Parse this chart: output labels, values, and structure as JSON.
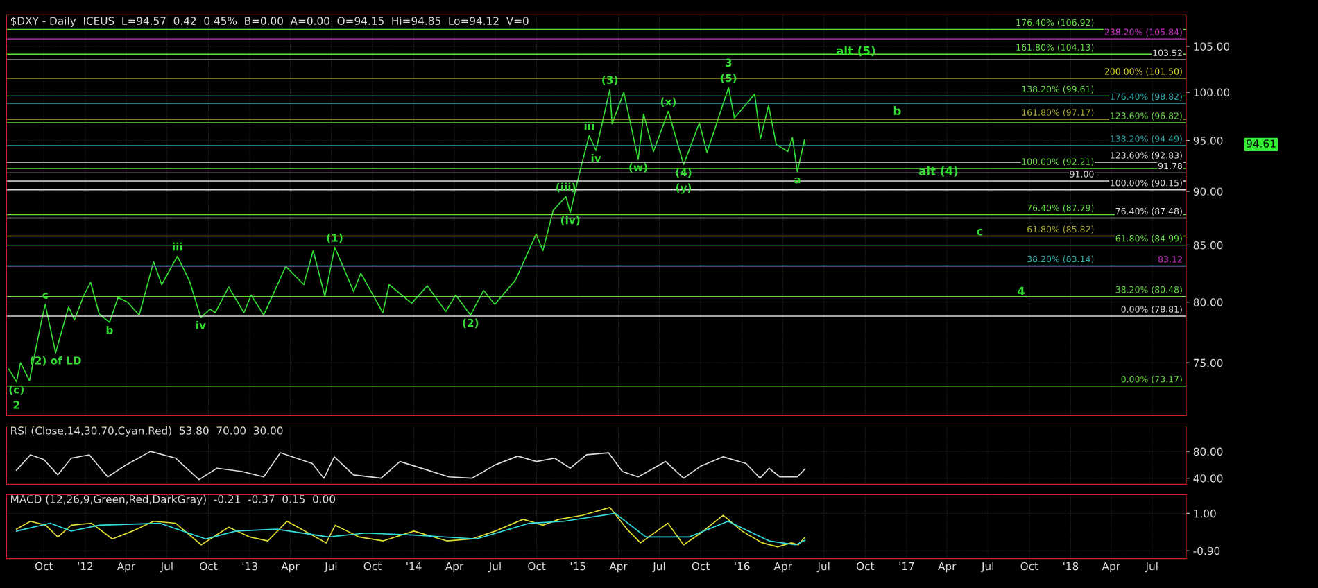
{
  "chart_data": [
    {
      "type": "line",
      "title": "$DXY - Daily  ICEUS  L=94.57  0.42  0.45%  B=0.00  A=0.00  O=94.15  Hi=94.85  Lo=94.12  V=0",
      "log": true,
      "grid": true,
      "tick_labels": "y",
      "xlim": [
        "2011-07-10",
        "2018-09-15"
      ],
      "ylim": [
        70.9,
        108.6
      ],
      "yticks": [
        {
          "value": 75,
          "label": "75.00"
        },
        {
          "value": 80,
          "label": "80.00"
        },
        {
          "value": 85,
          "label": "85.00"
        },
        {
          "value": 90,
          "label": "90.00"
        },
        {
          "value": 95,
          "label": "95.00"
        },
        {
          "value": 100,
          "label": "100.00"
        },
        {
          "value": 105,
          "label": "105.00"
        }
      ],
      "series": [
        {
          "color": "#33dd33",
          "x": [
            "2011-07-15",
            "2011-08-01",
            "2011-08-10",
            "2011-08-30",
            "2011-09-26",
            "2011-10-04",
            "2011-10-27",
            "2011-11-25",
            "2011-12-08",
            "2011-12-29",
            "2012-01-13",
            "2012-02-01",
            "2012-02-24",
            "2012-03-14",
            "2012-04-04",
            "2012-04-30",
            "2012-06-01",
            "2012-06-19",
            "2012-07-24",
            "2012-08-20",
            "2012-09-14",
            "2012-10-05",
            "2012-10-16",
            "2012-11-15",
            "2012-12-19",
            "2013-01-04",
            "2013-02-01",
            "2013-03-22",
            "2013-05-01",
            "2013-05-22",
            "2013-06-17",
            "2013-07-09",
            "2013-08-20",
            "2013-09-05",
            "2013-10-24",
            "2013-11-07",
            "2013-12-27",
            "2014-01-31",
            "2014-03-13",
            "2014-04-04",
            "2014-05-07",
            "2014-06-05",
            "2014-06-30",
            "2014-08-15",
            "2014-09-30",
            "2014-10-15",
            "2014-11-07",
            "2014-12-05",
            "2014-12-15",
            "2015-01-05",
            "2015-01-26",
            "2015-02-10",
            "2015-03-13",
            "2015-03-18",
            "2015-04-13",
            "2015-05-15",
            "2015-05-27",
            "2015-06-18",
            "2015-07-21",
            "2015-08-24",
            "2015-09-28",
            "2015-10-15",
            "2015-12-02",
            "2015-12-15",
            "2016-01-29",
            "2016-02-11",
            "2016-02-29",
            "2016-03-17",
            "2016-04-12",
            "2016-04-22",
            "2016-05-03",
            "2016-05-19",
            "2016-05-20"
          ],
          "values": [
            74.5,
            73.5,
            75.0,
            73.6,
            78.5,
            79.8,
            75.8,
            79.6,
            78.5,
            80.6,
            81.7,
            79.0,
            78.3,
            80.4,
            80.0,
            78.9,
            83.5,
            81.5,
            84.0,
            81.8,
            78.7,
            79.4,
            79.1,
            81.3,
            79.1,
            80.6,
            78.9,
            83.1,
            81.5,
            84.5,
            80.5,
            84.8,
            80.9,
            82.5,
            79.1,
            81.5,
            79.9,
            81.4,
            79.2,
            80.6,
            78.9,
            81.0,
            79.8,
            81.9,
            86.0,
            84.5,
            88.2,
            89.5,
            88.0,
            91.9,
            95.5,
            94.0,
            100.3,
            96.7,
            100.0,
            93.1,
            97.7,
            93.9,
            98.0,
            92.6,
            96.8,
            93.8,
            100.5,
            97.3,
            99.8,
            95.2,
            98.6,
            94.6,
            93.9,
            95.3,
            91.9,
            95.1,
            94.6
          ]
        }
      ],
      "ref_lines": [
        {
          "axis": "y",
          "value": 106.92,
          "label": "176.40% (106.92)",
          "color": "#66dd44"
        },
        {
          "axis": "y",
          "value": 105.84,
          "label": "238.20% (105.84)",
          "color": "#cc33cc"
        },
        {
          "axis": "y",
          "value": 104.13,
          "label": "161.80% (104.13)",
          "color": "#66dd44"
        },
        {
          "axis": "y",
          "value": 103.52,
          "label": "103.52",
          "color": "#dddddd"
        },
        {
          "axis": "y",
          "value": 101.5,
          "label": "200.00% (101.50)",
          "color": "#dddd33"
        },
        {
          "axis": "y",
          "value": 99.61,
          "label": "138.20% (99.61)",
          "color": "#66dd44"
        },
        {
          "axis": "y",
          "value": 98.82,
          "label": "176.40% (98.82)",
          "color": "#33aaaa"
        },
        {
          "axis": "y",
          "value": 97.17,
          "label": "161.80% (97.17)",
          "color": "#aaaa33"
        },
        {
          "axis": "y",
          "value": 96.82,
          "label": "123.60% (96.82)",
          "color": "#66dd44"
        },
        {
          "axis": "y",
          "value": 94.49,
          "label": "138.20% (94.49)",
          "color": "#33aaaa"
        },
        {
          "axis": "y",
          "value": 92.83,
          "label": "123.60% (92.83)",
          "color": "#dddddd"
        },
        {
          "axis": "y",
          "value": 92.21,
          "label": "100.00% (92.21)",
          "color": "#66dd44"
        },
        {
          "axis": "y",
          "value": 91.78,
          "label": "91.78",
          "color": "#dddddd"
        },
        {
          "axis": "y",
          "value": 91.0,
          "label": "91.00",
          "color": "#dddddd"
        },
        {
          "axis": "y",
          "value": 90.15,
          "label": "100.00% (90.15)",
          "color": "#dddddd"
        },
        {
          "axis": "y",
          "value": 87.79,
          "label": "76.40% (87.79)",
          "color": "#66dd44"
        },
        {
          "axis": "y",
          "value": 87.48,
          "label": "76.40% (87.48)",
          "color": "#dddddd"
        },
        {
          "axis": "y",
          "value": 85.82,
          "label": "61.80% (85.82)",
          "color": "#aaaa33"
        },
        {
          "axis": "y",
          "value": 84.99,
          "label": "61.80% (84.99)",
          "color": "#66dd44"
        },
        {
          "axis": "y",
          "value": 83.14,
          "label": "38.20% (83.14)",
          "color": "#33aaaa"
        },
        {
          "axis": "y",
          "value": 83.12,
          "label": "83.12",
          "color": "#cc33cc"
        },
        {
          "axis": "y",
          "value": 80.48,
          "label": "38.20% (80.48)",
          "color": "#66dd44"
        },
        {
          "axis": "y",
          "value": 78.81,
          "label": "0.00% (78.81)",
          "color": "#dddddd"
        },
        {
          "axis": "y",
          "value": 73.17,
          "label": "0.00% (73.17)",
          "color": "#66dd44"
        }
      ],
      "annotations": [
        "94.61",
        {
          "text": "(5)",
          "x": "2015-12-02",
          "y": 100.5
        },
        {
          "text": "3",
          "x": "2015-12-02",
          "y": 100.5
        },
        {
          "text": "(3)",
          "x": "2015-03-13",
          "y": 100.3
        },
        {
          "text": "a",
          "x": "2016-05-03",
          "y": 91.9
        },
        {
          "text": "(4)",
          "x": "2015-08-24",
          "y": 92.6
        },
        {
          "text": "(y)",
          "x": "2015-08-24",
          "y": 92.6
        },
        {
          "text": "(1)",
          "x": "2013-07-09",
          "y": 84.8
        },
        {
          "text": "(2)",
          "x": "2014-05-07",
          "y": 78.9
        },
        {
          "text": "iii",
          "x": "2012-07-24",
          "y": 84.0
        },
        {
          "text": "iv",
          "x": "2012-09-14",
          "y": 78.7
        },
        {
          "text": "b",
          "x": "2012-02-24",
          "y": 78.3
        },
        {
          "text": "c",
          "x": "2011-10-04",
          "y": 79.8
        },
        {
          "text": "(2) of LD",
          "x": "2011-10-27",
          "y": 75.8
        },
        {
          "text": "(c)",
          "x": "2011-08-01",
          "y": 73.5
        },
        {
          "text": "2",
          "x": "2011-08-01",
          "y": 73.5
        },
        {
          "text": "iii",
          "x": "2015-01-26",
          "y": 95.5
        },
        {
          "text": "iv",
          "x": "2015-02-10",
          "y": 94.0
        },
        {
          "text": "(iii)",
          "x": "2014-12-05",
          "y": 89.5
        },
        {
          "text": "(iv)",
          "x": "2014-12-15",
          "y": 88.0
        },
        {
          "text": "(x)",
          "x": "2015-07-21",
          "y": 98.0
        },
        {
          "text": "(w)",
          "x": "2015-05-15",
          "y": 93.1
        },
        "alt (5)",
        "b",
        "alt (4)",
        "c",
        "4"
      ]
    },
    {
      "type": "line",
      "title": "RSI (Close,14,30,70,Cyan,Red)  53.80  70.00  30.00",
      "grid": true,
      "tick_labels": "y",
      "xlim": [
        "2011-07-10",
        "2018-09-15"
      ],
      "ylim": [
        31,
        118
      ],
      "yticks": [
        {
          "value": 40,
          "label": "40.00"
        },
        {
          "value": 80,
          "label": "80.00"
        }
      ],
      "series": [
        {
          "color": "#dddddd",
          "x": [
            "2011-08-01",
            "2011-09-01",
            "2011-10-01",
            "2011-11-01",
            "2011-12-01",
            "2012-01-10",
            "2012-02-20",
            "2012-04-01",
            "2012-05-25",
            "2012-07-20",
            "2012-09-10",
            "2012-10-20",
            "2012-12-15",
            "2013-02-01",
            "2013-03-10",
            "2013-05-20",
            "2013-06-15",
            "2013-07-08",
            "2013-08-20",
            "2013-10-20",
            "2013-12-01",
            "2014-02-01",
            "2014-03-20",
            "2014-05-10",
            "2014-07-01",
            "2014-08-20",
            "2014-10-01",
            "2014-11-10",
            "2014-12-15",
            "2015-01-20",
            "2015-03-10",
            "2015-04-10",
            "2015-05-15",
            "2015-07-15",
            "2015-08-24",
            "2015-10-01",
            "2015-11-20",
            "2016-01-10",
            "2016-02-10",
            "2016-03-01",
            "2016-03-25",
            "2016-05-03",
            "2016-05-20"
          ],
          "values": [
            52,
            75,
            68,
            45,
            70,
            75,
            42,
            60,
            80,
            70,
            38,
            55,
            50,
            42,
            78,
            62,
            40,
            72,
            45,
            40,
            65,
            52,
            42,
            40,
            60,
            73,
            65,
            70,
            55,
            75,
            78,
            50,
            42,
            65,
            40,
            58,
            72,
            62,
            40,
            55,
            42,
            42,
            54
          ]
        }
      ]
    },
    {
      "type": "line",
      "title": "MACD (12,26,9,Green,Red,DarkGray)  -0.21  -0.37  0.15  0.00",
      "grid": true,
      "xlim": [
        "2011-07-10",
        "2018-09-15"
      ],
      "ylim": [
        -1.3,
        1.95
      ],
      "yticks": [
        {
          "value": -0.9,
          "label": "-0.90"
        },
        {
          "value": 1.0,
          "label": "1.00"
        }
      ],
      "xticks": [
        {
          "value": "2011-10-01",
          "label": "Oct"
        },
        {
          "value": "2012-01-01",
          "label": "'12"
        },
        {
          "value": "2012-04-01",
          "label": "Apr"
        },
        {
          "value": "2012-07-01",
          "label": "Jul"
        },
        {
          "value": "2012-10-01",
          "label": "Oct"
        },
        {
          "value": "2013-01-01",
          "label": "'13"
        },
        {
          "value": "2013-04-01",
          "label": "Apr"
        },
        {
          "value": "2013-07-01",
          "label": "Jul"
        },
        {
          "value": "2013-10-01",
          "label": "Oct"
        },
        {
          "value": "2014-01-01",
          "label": "'14"
        },
        {
          "value": "2014-04-01",
          "label": "Apr"
        },
        {
          "value": "2014-07-01",
          "label": "Jul"
        },
        {
          "value": "2014-10-01",
          "label": "Oct"
        },
        {
          "value": "2015-01-01",
          "label": "'15"
        },
        {
          "value": "2015-04-01",
          "label": "Apr"
        },
        {
          "value": "2015-07-01",
          "label": "Jul"
        },
        {
          "value": "2015-10-01",
          "label": "Oct"
        },
        {
          "value": "2016-01-01",
          "label": "'16"
        },
        {
          "value": "2016-04-01",
          "label": "Apr"
        },
        {
          "value": "2016-07-01",
          "label": "Jul"
        },
        {
          "value": "2016-10-01",
          "label": "Oct"
        },
        {
          "value": "2017-01-01",
          "label": "'17"
        },
        {
          "value": "2017-04-01",
          "label": "Apr"
        },
        {
          "value": "2017-07-01",
          "label": "Jul"
        },
        {
          "value": "2017-10-01",
          "label": "Oct"
        },
        {
          "value": "2018-01-01",
          "label": "'18"
        },
        {
          "value": "2018-04-01",
          "label": "Apr"
        },
        {
          "value": "2018-07-01",
          "label": "Jul"
        }
      ],
      "series": [
        {
          "color": "#dddd33",
          "x": [
            "2011-08-01",
            "2011-09-01",
            "2011-10-05",
            "2011-11-01",
            "2011-12-01",
            "2012-01-15",
            "2012-03-01",
            "2012-04-15",
            "2012-06-01",
            "2012-07-20",
            "2012-09-15",
            "2012-11-15",
            "2013-01-01",
            "2013-02-10",
            "2013-03-25",
            "2013-06-20",
            "2013-07-10",
            "2013-09-01",
            "2013-10-25",
            "2014-01-01",
            "2014-03-15",
            "2014-05-10",
            "2014-07-01",
            "2014-09-01",
            "2014-10-15",
            "2014-11-20",
            "2015-01-10",
            "2015-03-13",
            "2015-04-20",
            "2015-05-20",
            "2015-07-20",
            "2015-08-24",
            "2015-10-01",
            "2015-11-20",
            "2016-01-01",
            "2016-02-15",
            "2016-03-20",
            "2016-04-20",
            "2016-05-05",
            "2016-05-20"
          ],
          "values": [
            0.2,
            0.6,
            0.4,
            -0.2,
            0.4,
            0.5,
            -0.3,
            0.1,
            0.6,
            0.5,
            -0.6,
            0.3,
            -0.2,
            -0.4,
            0.6,
            -0.5,
            0.4,
            -0.2,
            -0.4,
            0.1,
            -0.4,
            -0.3,
            0.1,
            0.7,
            0.4,
            0.7,
            0.9,
            1.3,
            0.2,
            -0.5,
            0.5,
            -0.6,
            0.0,
            0.9,
            0.1,
            -0.5,
            -0.7,
            -0.5,
            -0.6,
            -0.21
          ]
        },
        {
          "color": "#33dddd",
          "x": [
            "2011-08-01",
            "2011-10-15",
            "2011-12-01",
            "2012-02-01",
            "2012-06-15",
            "2012-09-25",
            "2012-12-01",
            "2013-03-01",
            "2013-06-25",
            "2013-09-15",
            "2014-01-01",
            "2014-05-20",
            "2014-09-15",
            "2014-12-01",
            "2015-03-25",
            "2015-06-01",
            "2015-09-05",
            "2015-12-01",
            "2016-03-01",
            "2016-04-30",
            "2016-05-20"
          ],
          "values": [
            0.1,
            0.5,
            0.1,
            0.4,
            0.5,
            -0.3,
            0.1,
            0.2,
            -0.2,
            0.0,
            -0.1,
            -0.3,
            0.5,
            0.6,
            1.0,
            -0.2,
            -0.2,
            0.6,
            -0.4,
            -0.6,
            -0.37
          ]
        }
      ]
    }
  ]
}
